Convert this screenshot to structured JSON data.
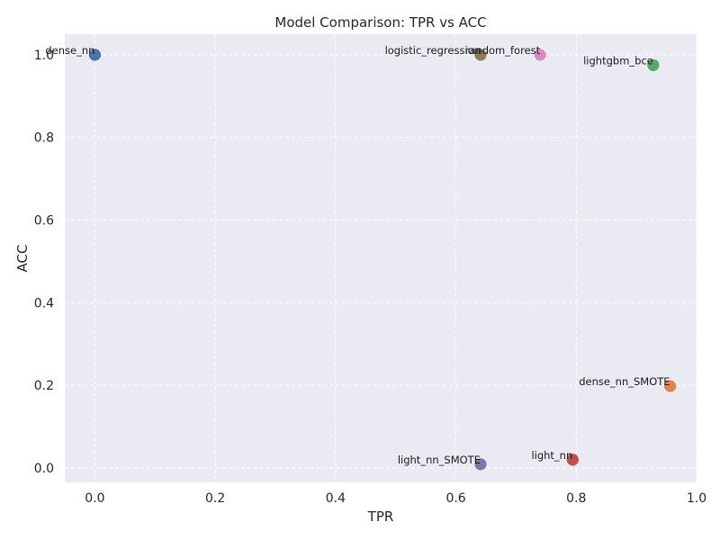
{
  "chart_data": {
    "type": "scatter",
    "title": "Model Comparison: TPR vs ACC",
    "xlabel": "TPR",
    "ylabel": "ACC",
    "xlim": [
      -0.05,
      1.0
    ],
    "ylim": [
      -0.035,
      1.05
    ],
    "xticks": [
      "0.0",
      "0.2",
      "0.4",
      "0.6",
      "0.8",
      "1.0"
    ],
    "yticks": [
      "0.0",
      "0.2",
      "0.4",
      "0.6",
      "0.8",
      "1.0"
    ],
    "grid": true,
    "legend": "none",
    "background_color": "#eaeaf2",
    "points": [
      {
        "label": "dense_nn",
        "x": 0.0,
        "y": 1.0,
        "color": "#4c72b0",
        "label_anchor": "end"
      },
      {
        "label": "logistic_regression",
        "x": 0.641,
        "y": 1.0,
        "color": "#937860",
        "label_anchor": "end"
      },
      {
        "label": "random_forest",
        "x": 0.74,
        "y": 1.0,
        "color": "#da8bc3",
        "label_anchor": "end"
      },
      {
        "label": "lightgbm_bce",
        "x": 0.928,
        "y": 0.975,
        "color": "#55a868",
        "label_anchor": "end"
      },
      {
        "label": "dense_nn_SMOTE",
        "x": 0.956,
        "y": 0.198,
        "color": "#dd8452",
        "label_anchor": "end"
      },
      {
        "label": "light_nn",
        "x": 0.794,
        "y": 0.02,
        "color": "#c44e52",
        "label_anchor": "end"
      },
      {
        "label": "light_nn_SMOTE",
        "x": 0.641,
        "y": 0.009,
        "color": "#8172b3",
        "label_anchor": "end"
      }
    ]
  }
}
